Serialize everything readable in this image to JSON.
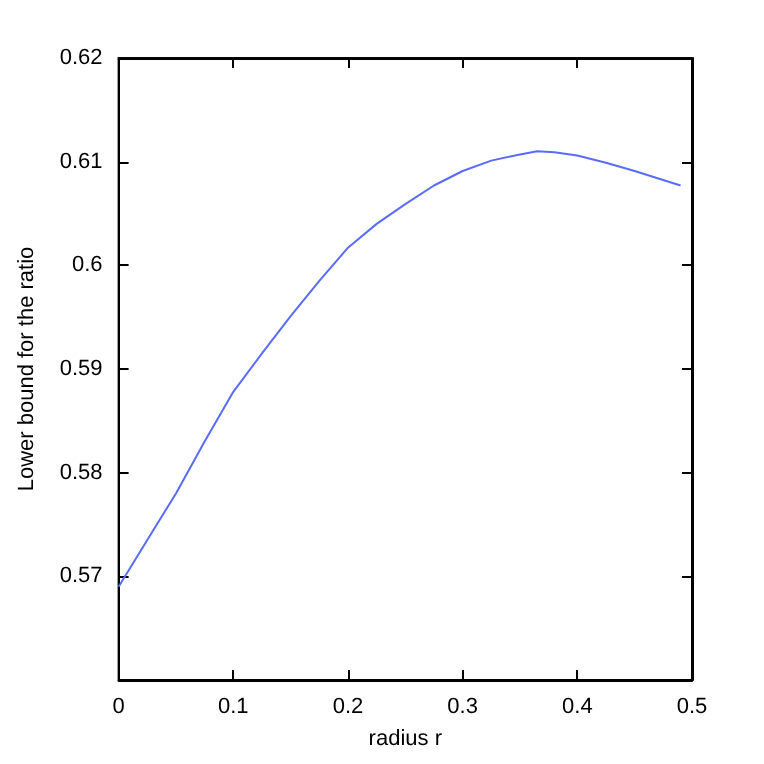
{
  "chart_data": {
    "type": "line",
    "xlabel": "radius r",
    "ylabel": "Lower bound for the ratio",
    "x": [
      0,
      0.025,
      0.05,
      0.075,
      0.1,
      0.125,
      0.15,
      0.175,
      0.2,
      0.225,
      0.25,
      0.275,
      0.3,
      0.325,
      0.35,
      0.365,
      0.38,
      0.4,
      0.425,
      0.45,
      0.47,
      0.49
    ],
    "series": [
      {
        "color": "#5a6cff",
        "values": [
          0.569,
          0.5735,
          0.578,
          0.583,
          0.5878,
          0.5915,
          0.5951,
          0.5985,
          0.6017,
          0.604,
          0.6059,
          0.6077,
          0.6091,
          0.6101,
          0.6107,
          0.611,
          0.6109,
          0.6106,
          0.6099,
          0.6091,
          0.6084,
          0.6077
        ]
      }
    ],
    "xlim": [
      0,
      0.5
    ],
    "xticks": [
      0,
      0.1,
      0.2,
      0.3,
      0.4,
      0.5
    ],
    "ylim": [
      0.56,
      0.62
    ],
    "yticks": [
      0.57,
      0.58,
      0.59,
      0.6,
      0.61,
      0.62
    ],
    "grid": false,
    "marker": "none",
    "line_style": "solid"
  }
}
